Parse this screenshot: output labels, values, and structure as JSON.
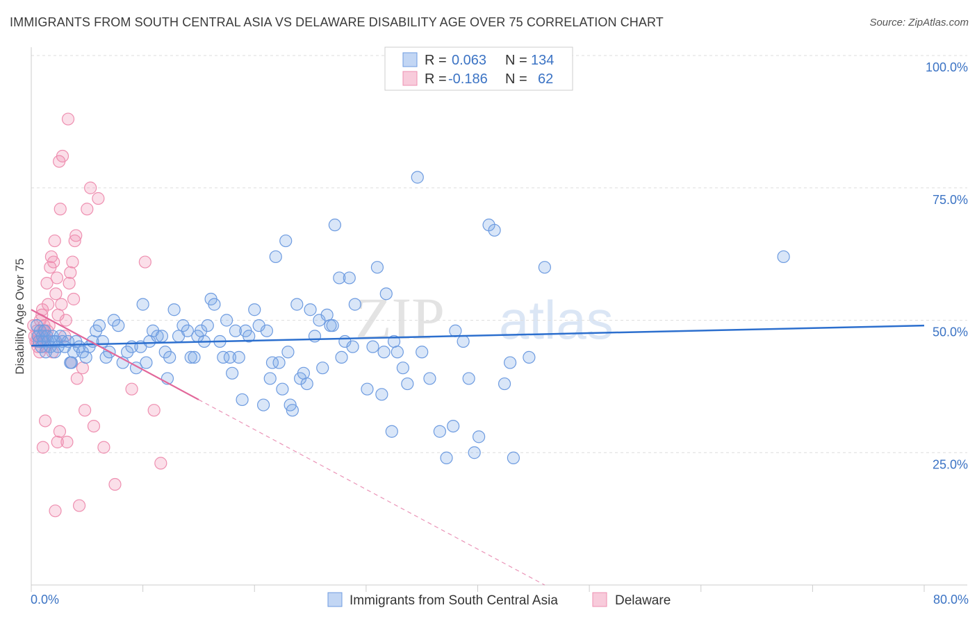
{
  "header": {
    "title": "IMMIGRANTS FROM SOUTH CENTRAL ASIA VS DELAWARE DISABILITY AGE OVER 75 CORRELATION CHART",
    "source": "Source: ZipAtlas.com"
  },
  "watermark": {
    "zip": "ZIP",
    "atlas": "atlas"
  },
  "colors": {
    "blue_fill": "rgba(120,165,230,0.28)",
    "blue_stroke": "#6d9be0",
    "blue_line": "#2c6fce",
    "pink_fill": "rgba(240,140,175,0.28)",
    "pink_stroke": "#ee8fb0",
    "pink_line": "#e2679a",
    "grid": "#dedede",
    "label": "#3b73c4"
  },
  "legend": {
    "rows": [
      {
        "r_label": "R =",
        "r_value": "0.063",
        "n_label": "N =",
        "n_value": "134"
      },
      {
        "r_label": "R =",
        "r_value": "-0.186",
        "n_label": "N =",
        "n_value": "62"
      }
    ]
  },
  "chart_data": {
    "type": "scatter",
    "title": "IMMIGRANTS FROM SOUTH CENTRAL ASIA VS DELAWARE DISABILITY AGE OVER 75 CORRELATION CHART",
    "xlabel": "",
    "ylabel": "Disability Age Over 75",
    "xlim": [
      0,
      80
    ],
    "ylim": [
      0,
      100
    ],
    "x_tick_labels": [
      "0.0%",
      "80.0%"
    ],
    "y_tick_labels": [
      "100.0%",
      "75.0%",
      "50.0%",
      "25.0%"
    ],
    "y_ticks": [
      100,
      75,
      50,
      25
    ],
    "series": [
      {
        "name": "Immigrants from South Central Asia",
        "color": "blue",
        "trend": {
          "x": [
            0,
            80
          ],
          "y": [
            45.2,
            49.0
          ]
        },
        "points": [
          [
            0.5,
            49
          ],
          [
            0.6,
            47
          ],
          [
            0.7,
            46
          ],
          [
            0.8,
            48
          ],
          [
            0.9,
            45
          ],
          [
            1.0,
            47
          ],
          [
            1.1,
            46
          ],
          [
            1.2,
            48
          ],
          [
            1.4,
            47
          ],
          [
            1.5,
            46
          ],
          [
            1.7,
            45
          ],
          [
            1.9,
            47
          ],
          [
            2.0,
            46
          ],
          [
            2.2,
            46
          ],
          [
            2.4,
            45
          ],
          [
            2.6,
            47
          ],
          [
            2.8,
            46
          ],
          [
            3.0,
            45
          ],
          [
            3.3,
            46
          ],
          [
            3.5,
            42
          ],
          [
            3.8,
            44
          ],
          [
            4.0,
            46
          ],
          [
            4.3,
            45
          ],
          [
            4.6,
            44
          ],
          [
            4.9,
            43
          ],
          [
            5.2,
            45
          ],
          [
            5.5,
            46
          ],
          [
            5.8,
            48
          ],
          [
            6.1,
            49
          ],
          [
            6.4,
            46
          ],
          [
            6.7,
            43
          ],
          [
            7.0,
            44
          ],
          [
            7.4,
            50
          ],
          [
            7.8,
            49
          ],
          [
            8.2,
            42
          ],
          [
            8.6,
            44
          ],
          [
            9.0,
            45
          ],
          [
            9.4,
            41
          ],
          [
            9.8,
            45
          ],
          [
            10.0,
            53
          ],
          [
            10.3,
            42
          ],
          [
            10.6,
            46
          ],
          [
            10.9,
            48
          ],
          [
            11.3,
            47
          ],
          [
            11.7,
            47
          ],
          [
            12.0,
            44
          ],
          [
            12.2,
            39
          ],
          [
            12.4,
            43
          ],
          [
            12.8,
            52
          ],
          [
            13.2,
            47
          ],
          [
            13.6,
            49
          ],
          [
            14.0,
            48
          ],
          [
            14.3,
            43
          ],
          [
            14.6,
            43
          ],
          [
            14.9,
            47
          ],
          [
            15.2,
            48
          ],
          [
            15.5,
            46
          ],
          [
            15.8,
            49
          ],
          [
            16.1,
            54
          ],
          [
            16.4,
            53
          ],
          [
            16.9,
            46
          ],
          [
            17.2,
            43
          ],
          [
            17.5,
            50
          ],
          [
            17.8,
            43
          ],
          [
            18.0,
            40
          ],
          [
            18.3,
            48
          ],
          [
            18.6,
            43
          ],
          [
            18.9,
            35
          ],
          [
            19.2,
            48
          ],
          [
            19.5,
            47
          ],
          [
            20.0,
            52
          ],
          [
            20.4,
            49
          ],
          [
            20.8,
            34
          ],
          [
            21.1,
            48
          ],
          [
            21.4,
            39
          ],
          [
            21.6,
            42
          ],
          [
            21.9,
            62
          ],
          [
            22.2,
            42
          ],
          [
            22.5,
            37
          ],
          [
            22.8,
            65
          ],
          [
            23.0,
            44
          ],
          [
            23.2,
            34
          ],
          [
            23.4,
            33
          ],
          [
            23.8,
            53
          ],
          [
            24.1,
            39
          ],
          [
            24.4,
            40
          ],
          [
            24.7,
            38
          ],
          [
            25.0,
            52
          ],
          [
            25.4,
            47
          ],
          [
            25.8,
            50
          ],
          [
            26.1,
            41
          ],
          [
            26.5,
            51
          ],
          [
            26.8,
            49
          ],
          [
            27.0,
            49
          ],
          [
            27.2,
            68
          ],
          [
            27.6,
            58
          ],
          [
            27.8,
            43
          ],
          [
            28.1,
            46
          ],
          [
            28.5,
            58
          ],
          [
            28.8,
            45
          ],
          [
            29.0,
            53
          ],
          [
            30.1,
            37
          ],
          [
            30.6,
            45
          ],
          [
            31.0,
            60
          ],
          [
            31.4,
            36
          ],
          [
            31.6,
            44
          ],
          [
            31.8,
            55
          ],
          [
            32.3,
            29
          ],
          [
            32.5,
            46
          ],
          [
            32.8,
            44
          ],
          [
            33.3,
            41
          ],
          [
            33.7,
            38
          ],
          [
            34.6,
            77
          ],
          [
            35.0,
            44
          ],
          [
            35.7,
            39
          ],
          [
            36.6,
            29
          ],
          [
            37.2,
            24
          ],
          [
            37.8,
            30
          ],
          [
            38.0,
            48
          ],
          [
            38.7,
            46
          ],
          [
            39.2,
            39
          ],
          [
            39.7,
            25
          ],
          [
            40.1,
            28
          ],
          [
            41.0,
            68
          ],
          [
            41.5,
            67
          ],
          [
            42.4,
            38
          ],
          [
            42.9,
            42
          ],
          [
            43.2,
            24
          ],
          [
            44.6,
            43
          ],
          [
            46.0,
            60
          ],
          [
            67.4,
            62
          ],
          [
            1.3,
            44
          ],
          [
            2.1,
            44
          ],
          [
            3.6,
            42
          ]
        ]
      },
      {
        "name": "Delaware",
        "color": "pink",
        "trend": {
          "x": [
            0,
            15
          ],
          "y": [
            52,
            35
          ],
          "dash_to": {
            "x": 46,
            "y": 0
          }
        },
        "points": [
          [
            0.2,
            49
          ],
          [
            0.3,
            47
          ],
          [
            0.4,
            46
          ],
          [
            0.5,
            48
          ],
          [
            0.6,
            45
          ],
          [
            0.7,
            47
          ],
          [
            0.8,
            50
          ],
          [
            0.9,
            46
          ],
          [
            1.0,
            52
          ],
          [
            1.1,
            48
          ],
          [
            1.2,
            47
          ],
          [
            1.3,
            45
          ],
          [
            1.4,
            57
          ],
          [
            1.5,
            53
          ],
          [
            1.6,
            49
          ],
          [
            1.7,
            60
          ],
          [
            1.8,
            62
          ],
          [
            1.9,
            44
          ],
          [
            2.0,
            61
          ],
          [
            2.1,
            65
          ],
          [
            2.2,
            55
          ],
          [
            2.3,
            58
          ],
          [
            2.4,
            51
          ],
          [
            2.5,
            80
          ],
          [
            2.6,
            71
          ],
          [
            2.7,
            53
          ],
          [
            2.8,
            81
          ],
          [
            3.0,
            47
          ],
          [
            3.1,
            50
          ],
          [
            3.2,
            27
          ],
          [
            3.3,
            88
          ],
          [
            3.4,
            57
          ],
          [
            3.5,
            59
          ],
          [
            3.6,
            42
          ],
          [
            3.7,
            61
          ],
          [
            3.8,
            54
          ],
          [
            3.9,
            65
          ],
          [
            4.0,
            66
          ],
          [
            4.1,
            39
          ],
          [
            4.3,
            15
          ],
          [
            4.6,
            41
          ],
          [
            4.8,
            33
          ],
          [
            5.0,
            71
          ],
          [
            5.3,
            75
          ],
          [
            5.6,
            30
          ],
          [
            6.0,
            73
          ],
          [
            6.5,
            26
          ],
          [
            7.5,
            19
          ],
          [
            9.0,
            37
          ],
          [
            10.2,
            61
          ],
          [
            11.0,
            33
          ],
          [
            11.6,
            23
          ],
          [
            1.05,
            26
          ],
          [
            1.25,
            31
          ],
          [
            2.15,
            14
          ],
          [
            2.35,
            27
          ],
          [
            2.55,
            29
          ],
          [
            0.55,
            46
          ],
          [
            0.75,
            44
          ],
          [
            0.95,
            51
          ],
          [
            1.15,
            49
          ],
          [
            1.45,
            48
          ]
        ]
      }
    ]
  },
  "bottom_legend": {
    "series_a": "Immigrants from South Central Asia",
    "series_b": "Delaware"
  }
}
